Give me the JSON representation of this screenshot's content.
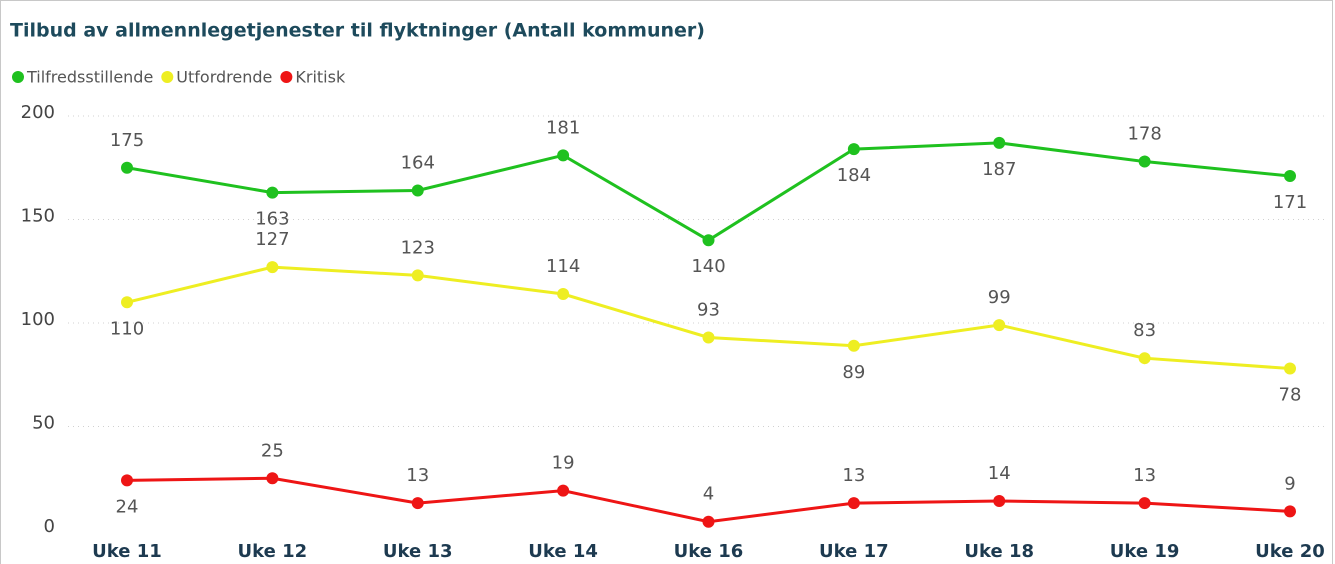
{
  "chart_data": {
    "type": "line",
    "title": "Tilbud av allmennlegetjenester til flyktninger (Antall kommuner)",
    "categories": [
      "Uke 11",
      "Uke 12",
      "Uke 13",
      "Uke 14",
      "Uke 16",
      "Uke 17",
      "Uke 18",
      "Uke 19",
      "Uke 20"
    ],
    "series": [
      {
        "name": "Tilfredsstillende",
        "color": "#1fc11f",
        "values": [
          175,
          163,
          164,
          181,
          140,
          184,
          187,
          178,
          171
        ]
      },
      {
        "name": "Utfordrende",
        "color": "#eeee22",
        "values": [
          110,
          127,
          123,
          114,
          93,
          89,
          99,
          83,
          78
        ]
      },
      {
        "name": "Kritisk",
        "color": "#ee1515",
        "values": [
          24,
          25,
          13,
          19,
          4,
          13,
          14,
          13,
          9
        ]
      }
    ],
    "ylim": [
      0,
      200
    ],
    "yticks": [
      0,
      50,
      100,
      150,
      200
    ],
    "grid": true,
    "legend": "top-left"
  }
}
